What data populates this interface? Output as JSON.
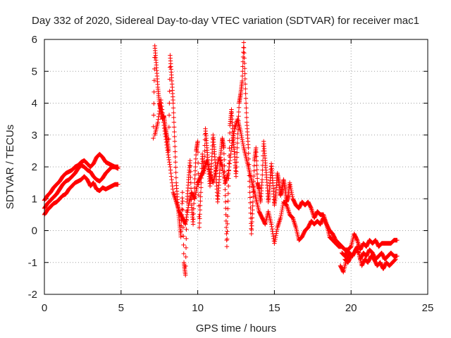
{
  "chart_data": {
    "type": "scatter",
    "title": "Day 332 of 2020, Sidereal Day-to-day VTEC variation (SDTVAR) for receiver mac1",
    "xlabel": "GPS time / hours",
    "ylabel": "SDTVAR / TECUs",
    "xlim": [
      0,
      25
    ],
    "ylim": [
      -2,
      6
    ],
    "xticks": [
      0,
      5,
      10,
      15,
      20,
      25
    ],
    "yticks": [
      -2,
      -1,
      0,
      1,
      2,
      3,
      4,
      5,
      6
    ],
    "grid": true,
    "marker": "+",
    "series_color": "#ff0000",
    "series": [
      {
        "name": "mac1",
        "segments": [
          {
            "x": [
              0.0,
              0.2,
              0.4,
              0.6,
              0.8,
              1.0,
              1.2,
              1.4,
              1.6,
              1.8,
              2.0,
              2.2,
              2.4,
              2.6,
              2.8,
              3.0,
              3.2,
              3.4,
              3.6,
              3.8,
              4.0,
              4.2,
              4.4,
              4.6,
              4.8
            ],
            "y": [
              0.5,
              0.65,
              0.75,
              0.85,
              0.9,
              1.0,
              1.1,
              1.15,
              1.3,
              1.4,
              1.5,
              1.55,
              1.6,
              1.7,
              1.6,
              1.4,
              1.5,
              1.3,
              1.25,
              1.35,
              1.3,
              1.35,
              1.4,
              1.45,
              1.45
            ]
          },
          {
            "x": [
              0.0,
              0.2,
              0.4,
              0.6,
              0.8,
              1.0,
              1.2,
              1.4,
              1.6,
              1.8,
              2.0,
              2.2,
              2.4,
              2.6,
              2.8,
              3.0,
              3.2,
              3.4,
              3.6,
              3.8,
              4.0,
              4.2,
              4.4,
              4.6,
              4.8
            ],
            "y": [
              0.7,
              0.85,
              0.95,
              1.05,
              1.15,
              1.3,
              1.45,
              1.55,
              1.6,
              1.7,
              1.8,
              1.95,
              2.05,
              2.0,
              1.9,
              1.85,
              1.7,
              1.6,
              1.55,
              1.65,
              1.8,
              1.9,
              2.0,
              2.0,
              1.95
            ]
          },
          {
            "x": [
              0.0,
              0.2,
              0.4,
              0.6,
              0.8,
              1.0,
              1.2,
              1.4,
              1.6,
              1.8,
              2.0,
              2.2,
              2.4,
              2.6,
              2.8,
              3.0,
              3.2,
              3.4,
              3.6,
              3.8,
              4.0,
              4.2,
              4.4,
              4.6,
              4.8
            ],
            "y": [
              0.95,
              1.1,
              1.2,
              1.35,
              1.45,
              1.55,
              1.7,
              1.8,
              1.85,
              1.9,
              2.0,
              2.05,
              2.15,
              2.2,
              2.1,
              2.0,
              2.1,
              2.3,
              2.4,
              2.3,
              2.15,
              2.1,
              2.05,
              2.0,
              2.0
            ]
          },
          {
            "x": [
              7.1,
              7.2,
              7.3,
              7.4,
              7.5,
              7.6,
              7.7,
              7.8,
              7.9,
              8.0,
              8.1,
              8.2,
              8.3,
              8.4,
              8.5,
              8.6,
              8.7,
              8.8,
              8.9,
              9.0,
              9.1,
              9.2,
              9.3,
              9.4,
              9.5,
              9.6,
              9.7,
              9.8,
              9.9,
              10.0,
              10.1,
              10.2,
              10.3,
              10.4,
              10.5,
              10.6,
              10.7,
              10.8,
              10.9,
              11.0,
              11.1,
              11.2,
              11.3,
              11.4,
              11.5,
              11.6,
              11.7,
              11.8,
              11.9,
              12.0,
              12.1,
              12.2,
              12.3,
              12.4,
              12.5,
              12.6,
              12.7,
              12.8,
              12.9,
              13.0,
              13.1,
              13.2,
              13.3,
              13.4,
              13.5,
              13.6,
              13.7,
              13.8,
              13.9,
              14.0,
              14.1,
              14.2,
              14.3,
              14.4,
              14.5,
              14.6,
              14.7,
              14.8,
              14.9,
              15.0,
              15.1,
              15.2,
              15.3,
              15.4,
              15.5,
              15.6,
              15.7,
              15.8,
              15.9,
              16.0,
              16.2,
              16.4,
              16.6,
              16.8,
              17.0,
              17.2,
              17.4,
              17.6,
              17.8,
              18.0,
              18.2,
              18.4,
              18.6,
              18.8,
              19.0,
              19.2,
              19.4,
              19.6,
              19.8,
              20.0
            ],
            "y": [
              2.9,
              5.8,
              5.2,
              4.5,
              4.0,
              3.8,
              3.5,
              3.6,
              3.2,
              2.9,
              2.5,
              5.5,
              4.8,
              4.0,
              2.8,
              1.5,
              0.8,
              0.3,
              -0.2,
              1.2,
              -1.0,
              -1.4,
              0.9,
              1.6,
              2.2,
              0.8,
              0.2,
              1.5,
              2.5,
              2.8,
              0.1,
              1.2,
              2.4,
              1.8,
              3.2,
              2.6,
              2.0,
              1.4,
              2.1,
              3.0,
              2.4,
              1.7,
              0.9,
              1.6,
              2.4,
              2.9,
              2.6,
              1.1,
              -0.5,
              1.4,
              3.3,
              3.8,
              3.0,
              2.4,
              1.7,
              2.9,
              4.0,
              4.3,
              4.7,
              5.9,
              4.6,
              3.4,
              2.6,
              1.2,
              -0.1,
              0.9,
              2.2,
              2.6,
              1.5,
              1.3,
              0.9,
              1.6,
              2.8,
              2.2,
              1.6,
              0.9,
              1.4,
              2.1,
              1.5,
              0.8,
              1.2,
              1.8,
              1.5,
              1.1,
              1.3,
              1.6,
              1.3,
              0.9,
              1.1,
              1.5,
              1.0,
              0.8,
              0.7,
              0.9,
              0.8,
              0.9,
              0.7,
              0.4,
              0.6,
              0.5,
              0.5,
              0.2,
              -0.2,
              -0.3,
              -0.4,
              -0.5,
              -0.5,
              -0.6,
              -0.6,
              -0.5
            ]
          },
          {
            "x": [
              7.2,
              7.4,
              7.6,
              7.8,
              8.0,
              8.2,
              8.4,
              8.6,
              8.8,
              9.0,
              9.2,
              9.4,
              9.6,
              9.8,
              10.0,
              10.2,
              10.4,
              10.6,
              10.8,
              11.0,
              11.2,
              11.4,
              11.6,
              11.8,
              12.0,
              12.2,
              12.4,
              12.6,
              12.8,
              13.0,
              13.2,
              13.4,
              13.6,
              13.8,
              14.0,
              14.2,
              14.4,
              14.6,
              14.8,
              15.0,
              15.2,
              15.4,
              15.6,
              15.8,
              16.0,
              16.2,
              16.4,
              16.6,
              16.8,
              17.0,
              17.2,
              17.4,
              17.6,
              17.8,
              18.0,
              18.2,
              18.4,
              18.6,
              18.8,
              19.0,
              19.2,
              19.4,
              19.6
            ],
            "y": [
              3.0,
              3.4,
              4.1,
              3.3,
              2.6,
              2.0,
              1.2,
              0.9,
              0.6,
              0.4,
              0.2,
              0.8,
              1.2,
              1.0,
              1.5,
              1.7,
              1.9,
              2.2,
              1.8,
              1.5,
              1.9,
              2.3,
              2.0,
              1.5,
              1.8,
              2.6,
              3.2,
              3.5,
              3.1,
              2.6,
              2.2,
              1.8,
              1.4,
              1.0,
              0.6,
              0.4,
              0.2,
              0.6,
              0.2,
              -0.4,
              0.1,
              0.4,
              0.9,
              0.8,
              0.5,
              0.4,
              0.1,
              -0.3,
              -0.2,
              0.0,
              0.1,
              0.3,
              0.2,
              0.3,
              0.2,
              0.4,
              0.2,
              0.0,
              -0.1,
              -0.3,
              -0.4,
              -0.5,
              -0.6
            ]
          },
          {
            "x": [
              19.3,
              19.5,
              19.7,
              19.9,
              20.1,
              20.3,
              20.5,
              20.7,
              20.9,
              21.1,
              21.3,
              21.5,
              21.7,
              21.9,
              22.1,
              22.3,
              22.5,
              22.7,
              22.9
            ],
            "y": [
              -1.1,
              -1.3,
              -0.9,
              -0.7,
              -0.8,
              -0.6,
              -0.7,
              -1.1,
              -0.9,
              -1.0,
              -0.8,
              -0.9,
              -1.1,
              -1.0,
              -1.2,
              -1.0,
              -1.1,
              -1.0,
              -0.9
            ]
          },
          {
            "x": [
              19.4,
              19.6,
              19.8,
              20.0,
              20.2,
              20.4,
              20.6,
              20.8,
              21.0,
              21.2,
              21.4,
              21.6,
              21.8,
              22.0,
              22.2,
              22.4,
              22.6,
              22.8,
              23.0
            ],
            "y": [
              -0.7,
              -0.8,
              -0.6,
              -0.5,
              -0.1,
              -0.3,
              -0.6,
              -0.4,
              -0.5,
              -0.3,
              -0.4,
              -0.3,
              -0.5,
              -0.4,
              -0.4,
              -0.4,
              -0.4,
              -0.3,
              -0.3
            ]
          },
          {
            "x": [
              19.6,
              19.8,
              20.0,
              20.2,
              20.4,
              20.6,
              20.8,
              21.0,
              21.2,
              21.4,
              21.6,
              21.8,
              22.0,
              22.2,
              22.4,
              22.6,
              22.8,
              23.0
            ],
            "y": [
              -0.9,
              -1.0,
              -0.8,
              -0.7,
              -0.5,
              -0.9,
              -0.7,
              -0.8,
              -0.6,
              -0.7,
              -0.9,
              -0.8,
              -0.7,
              -0.9,
              -0.8,
              -0.7,
              -0.8,
              -0.8
            ]
          }
        ]
      }
    ]
  }
}
